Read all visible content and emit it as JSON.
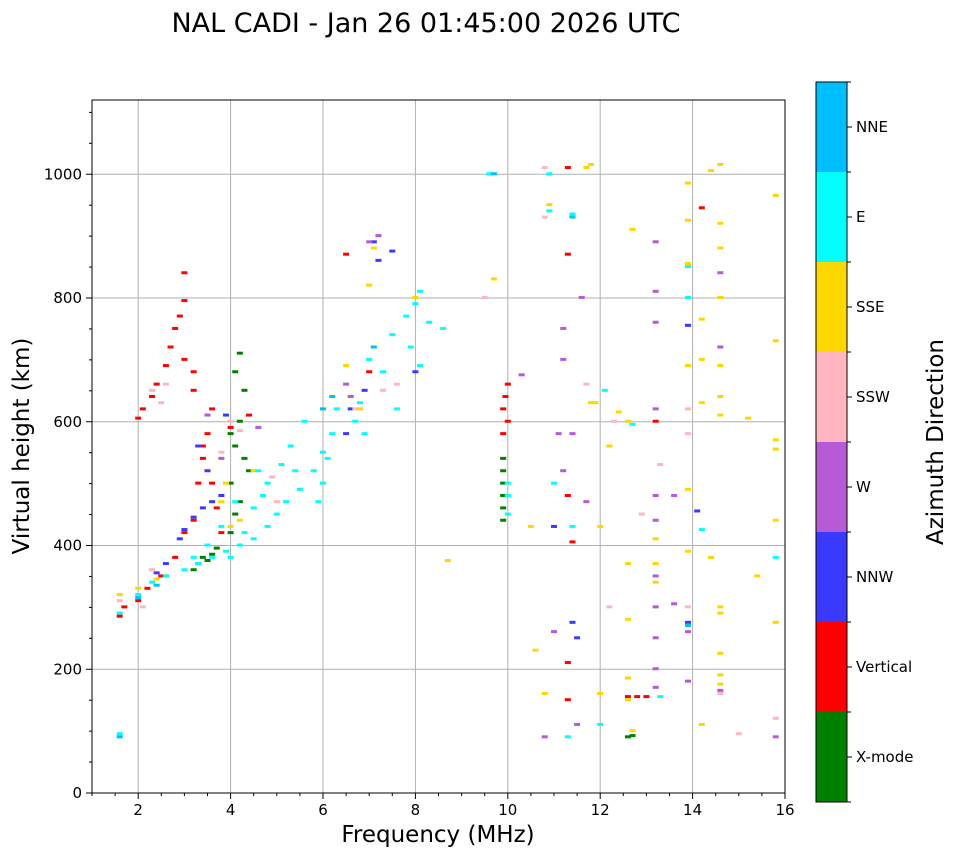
{
  "chart_data": {
    "type": "scatter",
    "title": "NAL CADI - Jan 26 01:45:00 2026 UTC",
    "xlabel": "Frequency (MHz)",
    "ylabel": "Virtual height (km)",
    "xlim": [
      1,
      16
    ],
    "ylim": [
      0,
      1120
    ],
    "xticks": [
      2,
      4,
      6,
      8,
      10,
      12,
      14,
      16
    ],
    "yticks": [
      0,
      200,
      400,
      600,
      800,
      1000
    ],
    "grid": true,
    "colorbar": {
      "label": "Azimuth Direction",
      "categories": [
        {
          "name": "X-mode",
          "color": "#008000"
        },
        {
          "name": "Vertical",
          "color": "#ff0000"
        },
        {
          "name": "NNW",
          "color": "#3a3aff"
        },
        {
          "name": "W",
          "color": "#b65ad6"
        },
        {
          "name": "SSW",
          "color": "#ffb6c1"
        },
        {
          "name": "SSE",
          "color": "#ffd700"
        },
        {
          "name": "E",
          "color": "#00ffff"
        },
        {
          "name": "NNE",
          "color": "#00bfff"
        }
      ]
    },
    "series": [
      {
        "name": "X-mode",
        "points": [
          [
            3.3,
            370
          ],
          [
            3.4,
            380
          ],
          [
            3.6,
            385
          ],
          [
            3.7,
            395
          ],
          [
            3.5,
            375
          ],
          [
            4.0,
            420
          ],
          [
            4.1,
            450
          ],
          [
            4.2,
            470
          ],
          [
            4.0,
            500
          ],
          [
            4.1,
            560
          ],
          [
            4.2,
            600
          ],
          [
            4.3,
            650
          ],
          [
            4.1,
            680
          ],
          [
            4.2,
            710
          ],
          [
            4.3,
            540
          ],
          [
            4.0,
            580
          ],
          [
            4.4,
            520
          ],
          [
            3.2,
            360
          ],
          [
            2.6,
            350
          ],
          [
            9.9,
            440
          ],
          [
            9.9,
            460
          ],
          [
            9.9,
            480
          ],
          [
            9.9,
            500
          ],
          [
            9.9,
            520
          ],
          [
            9.9,
            540
          ],
          [
            12.6,
            90
          ],
          [
            12.7,
            92
          ]
        ]
      },
      {
        "name": "Vertical",
        "points": [
          [
            1.6,
            285
          ],
          [
            1.7,
            300
          ],
          [
            2.0,
            310
          ],
          [
            2.2,
            330
          ],
          [
            2.5,
            350
          ],
          [
            2.8,
            380
          ],
          [
            3.0,
            420
          ],
          [
            3.2,
            440
          ],
          [
            3.3,
            500
          ],
          [
            3.4,
            540
          ],
          [
            3.5,
            580
          ],
          [
            3.6,
            620
          ],
          [
            3.2,
            680
          ],
          [
            3.0,
            700
          ],
          [
            2.0,
            605
          ],
          [
            2.1,
            620
          ],
          [
            2.3,
            640
          ],
          [
            2.4,
            660
          ],
          [
            2.6,
            690
          ],
          [
            2.7,
            720
          ],
          [
            2.8,
            750
          ],
          [
            2.9,
            770
          ],
          [
            3.0,
            795
          ],
          [
            3.0,
            840
          ],
          [
            3.2,
            650
          ],
          [
            3.4,
            560
          ],
          [
            3.6,
            500
          ],
          [
            3.7,
            460
          ],
          [
            3.8,
            420
          ],
          [
            4.0,
            590
          ],
          [
            4.4,
            610
          ],
          [
            6.5,
            870
          ],
          [
            7.0,
            680
          ],
          [
            9.9,
            580
          ],
          [
            10.0,
            600
          ],
          [
            9.95,
            640
          ],
          [
            10.0,
            660
          ],
          [
            9.9,
            620
          ],
          [
            11.3,
            1010
          ],
          [
            11.3,
            870
          ],
          [
            11.3,
            480
          ],
          [
            11.4,
            405
          ],
          [
            11.3,
            210
          ],
          [
            11.3,
            150
          ],
          [
            12.6,
            155
          ],
          [
            12.8,
            155
          ],
          [
            13.0,
            155
          ],
          [
            13.2,
            600
          ],
          [
            14.2,
            945
          ]
        ]
      },
      {
        "name": "NNW",
        "points": [
          [
            2.9,
            410
          ],
          [
            3.0,
            425
          ],
          [
            3.2,
            445
          ],
          [
            3.4,
            460
          ],
          [
            3.6,
            470
          ],
          [
            3.8,
            480
          ],
          [
            2.4,
            355
          ],
          [
            2.6,
            370
          ],
          [
            3.5,
            520
          ],
          [
            3.3,
            560
          ],
          [
            3.9,
            610
          ],
          [
            6.5,
            580
          ],
          [
            6.6,
            620
          ],
          [
            6.9,
            650
          ],
          [
            7.1,
            890
          ],
          [
            7.2,
            860
          ],
          [
            7.5,
            875
          ],
          [
            11.0,
            430
          ],
          [
            11.5,
            250
          ],
          [
            11.4,
            275
          ],
          [
            13.9,
            755
          ],
          [
            13.9,
            275
          ],
          [
            14.1,
            455
          ],
          [
            8.0,
            680
          ]
        ]
      },
      {
        "name": "W",
        "points": [
          [
            3.8,
            540
          ],
          [
            3.5,
            610
          ],
          [
            4.6,
            590
          ],
          [
            6.5,
            660
          ],
          [
            6.6,
            640
          ],
          [
            7.0,
            890
          ],
          [
            7.2,
            900
          ],
          [
            10.3,
            675
          ],
          [
            11.2,
            520
          ],
          [
            11.1,
            580
          ],
          [
            11.2,
            700
          ],
          [
            11.2,
            750
          ],
          [
            10.8,
            90
          ],
          [
            11.0,
            260
          ],
          [
            11.6,
            800
          ],
          [
            11.7,
            470
          ],
          [
            13.2,
            890
          ],
          [
            13.2,
            810
          ],
          [
            13.2,
            760
          ],
          [
            13.2,
            620
          ],
          [
            13.2,
            480
          ],
          [
            13.2,
            440
          ],
          [
            13.2,
            350
          ],
          [
            13.2,
            300
          ],
          [
            13.2,
            250
          ],
          [
            13.2,
            200
          ],
          [
            13.2,
            170
          ],
          [
            13.6,
            480
          ],
          [
            13.6,
            305
          ],
          [
            13.9,
            180
          ],
          [
            13.9,
            260
          ],
          [
            14.6,
            840
          ],
          [
            14.6,
            165
          ],
          [
            15.8,
            90
          ],
          [
            11.5,
            110
          ],
          [
            11.4,
            580
          ],
          [
            14.6,
            720
          ]
        ]
      },
      {
        "name": "SSW",
        "points": [
          [
            1.6,
            310
          ],
          [
            2.1,
            300
          ],
          [
            2.3,
            360
          ],
          [
            2.5,
            630
          ],
          [
            2.6,
            660
          ],
          [
            2.3,
            650
          ],
          [
            3.8,
            550
          ],
          [
            4.0,
            600
          ],
          [
            4.2,
            585
          ],
          [
            4.9,
            510
          ],
          [
            5.0,
            470
          ],
          [
            6.7,
            620
          ],
          [
            7.3,
            650
          ],
          [
            7.6,
            660
          ],
          [
            9.5,
            800
          ],
          [
            10.8,
            1010
          ],
          [
            10.8,
            930
          ],
          [
            11.7,
            660
          ],
          [
            12.2,
            300
          ],
          [
            12.9,
            450
          ],
          [
            13.3,
            530
          ],
          [
            13.9,
            620
          ],
          [
            13.9,
            580
          ],
          [
            13.9,
            300
          ],
          [
            14.6,
            160
          ],
          [
            15.0,
            95
          ],
          [
            15.8,
            120
          ],
          [
            12.3,
            600
          ]
        ]
      },
      {
        "name": "SSE",
        "points": [
          [
            1.6,
            320
          ],
          [
            2.0,
            330
          ],
          [
            2.4,
            345
          ],
          [
            3.8,
            470
          ],
          [
            4.0,
            430
          ],
          [
            4.2,
            440
          ],
          [
            3.9,
            500
          ],
          [
            4.5,
            520
          ],
          [
            6.5,
            690
          ],
          [
            6.8,
            620
          ],
          [
            7.0,
            820
          ],
          [
            7.1,
            880
          ],
          [
            8.0,
            800
          ],
          [
            8.7,
            375
          ],
          [
            9.7,
            830
          ],
          [
            10.5,
            430
          ],
          [
            10.6,
            230
          ],
          [
            10.8,
            160
          ],
          [
            10.9,
            950
          ],
          [
            11.7,
            1010
          ],
          [
            11.8,
            1015
          ],
          [
            11.8,
            630
          ],
          [
            11.9,
            630
          ],
          [
            12.0,
            430
          ],
          [
            12.0,
            160
          ],
          [
            12.2,
            560
          ],
          [
            12.4,
            615
          ],
          [
            12.7,
            910
          ],
          [
            12.6,
            600
          ],
          [
            12.6,
            370
          ],
          [
            12.6,
            280
          ],
          [
            12.6,
            185
          ],
          [
            12.6,
            150
          ],
          [
            12.7,
            100
          ],
          [
            13.2,
            410
          ],
          [
            13.2,
            370
          ],
          [
            13.2,
            340
          ],
          [
            13.9,
            985
          ],
          [
            13.9,
            925
          ],
          [
            13.9,
            855
          ],
          [
            13.9,
            690
          ],
          [
            13.9,
            490
          ],
          [
            13.9,
            390
          ],
          [
            14.2,
            765
          ],
          [
            14.2,
            700
          ],
          [
            14.2,
            630
          ],
          [
            14.2,
            110
          ],
          [
            14.4,
            1005
          ],
          [
            14.4,
            380
          ],
          [
            14.6,
            1015
          ],
          [
            14.6,
            920
          ],
          [
            14.6,
            880
          ],
          [
            14.6,
            800
          ],
          [
            14.6,
            690
          ],
          [
            14.6,
            640
          ],
          [
            14.6,
            610
          ],
          [
            14.6,
            300
          ],
          [
            14.6,
            290
          ],
          [
            14.6,
            225
          ],
          [
            14.6,
            190
          ],
          [
            14.6,
            175
          ],
          [
            15.2,
            605
          ],
          [
            15.4,
            350
          ],
          [
            15.8,
            965
          ],
          [
            15.8,
            730
          ],
          [
            15.8,
            570
          ],
          [
            15.8,
            555
          ],
          [
            15.8,
            440
          ],
          [
            15.8,
            275
          ]
        ]
      },
      {
        "name": "E",
        "points": [
          [
            1.6,
            95
          ],
          [
            1.6,
            290
          ],
          [
            2.0,
            320
          ],
          [
            2.3,
            340
          ],
          [
            2.6,
            350
          ],
          [
            3.0,
            360
          ],
          [
            3.3,
            370
          ],
          [
            3.6,
            380
          ],
          [
            3.9,
            390
          ],
          [
            4.2,
            400
          ],
          [
            4.5,
            410
          ],
          [
            4.8,
            430
          ],
          [
            5.0,
            450
          ],
          [
            5.2,
            470
          ],
          [
            5.5,
            490
          ],
          [
            5.8,
            520
          ],
          [
            6.0,
            550
          ],
          [
            6.2,
            580
          ],
          [
            6.3,
            620
          ],
          [
            4.5,
            460
          ],
          [
            4.8,
            500
          ],
          [
            5.1,
            530
          ],
          [
            5.3,
            560
          ],
          [
            5.6,
            600
          ],
          [
            4.0,
            380
          ],
          [
            4.3,
            420
          ],
          [
            4.7,
            480
          ],
          [
            5.4,
            520
          ],
          [
            3.8,
            430
          ],
          [
            4.1,
            470
          ],
          [
            4.6,
            520
          ],
          [
            5.9,
            470
          ],
          [
            6.0,
            500
          ],
          [
            6.1,
            540
          ],
          [
            3.5,
            400
          ],
          [
            3.2,
            380
          ],
          [
            6.8,
            630
          ],
          [
            7.0,
            700
          ],
          [
            7.5,
            740
          ],
          [
            7.8,
            770
          ],
          [
            8.0,
            790
          ],
          [
            8.1,
            810
          ],
          [
            8.3,
            760
          ],
          [
            8.6,
            750
          ],
          [
            7.9,
            720
          ],
          [
            8.1,
            690
          ],
          [
            7.6,
            620
          ],
          [
            6.7,
            600
          ],
          [
            6.9,
            580
          ],
          [
            7.3,
            680
          ],
          [
            9.6,
            1000
          ],
          [
            10.0,
            450
          ],
          [
            10.0,
            480
          ],
          [
            10.0,
            500
          ],
          [
            10.9,
            1000
          ],
          [
            10.9,
            940
          ],
          [
            11.0,
            500
          ],
          [
            11.3,
            90
          ],
          [
            11.4,
            935
          ],
          [
            12.0,
            110
          ],
          [
            12.1,
            650
          ],
          [
            12.7,
            595
          ],
          [
            13.3,
            155
          ],
          [
            13.9,
            800
          ],
          [
            13.9,
            850
          ],
          [
            14.2,
            425
          ],
          [
            15.8,
            380
          ],
          [
            11.4,
            430
          ]
        ]
      },
      {
        "name": "NNE",
        "points": [
          [
            1.6,
            90
          ],
          [
            2.0,
            315
          ],
          [
            2.4,
            335
          ],
          [
            6.0,
            620
          ],
          [
            6.2,
            640
          ],
          [
            7.1,
            720
          ],
          [
            9.7,
            1000
          ],
          [
            13.9,
            270
          ],
          [
            11.4,
            930
          ]
        ]
      }
    ]
  }
}
